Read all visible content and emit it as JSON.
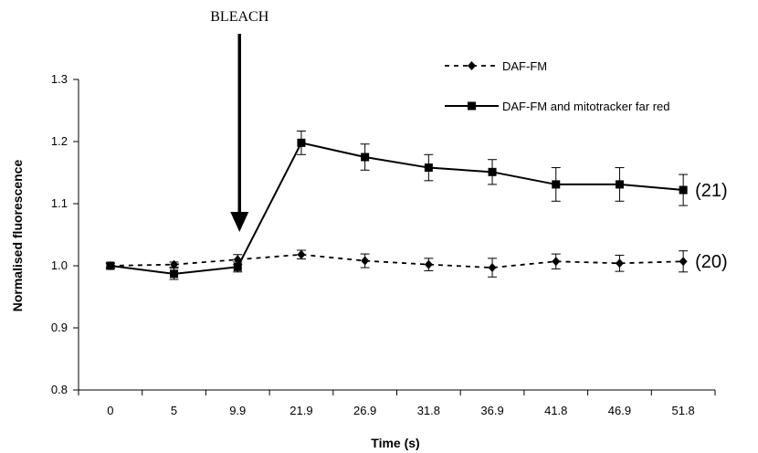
{
  "chart_data": {
    "type": "line",
    "categories": [
      "0",
      "5",
      "9.9",
      "21.9",
      "26.9",
      "31.8",
      "36.9",
      "41.8",
      "46.9",
      "51.8"
    ],
    "xlabel": "Time (s)",
    "ylabel": "Normalised fluorescence",
    "ylim": [
      0.8,
      1.3
    ],
    "yticks": [
      "0.8",
      "0.9",
      "1.0",
      "1.1",
      "1.2",
      "1.3"
    ],
    "grid": false,
    "legend_position": "top-right",
    "series": [
      {
        "name": "DAF-FM",
        "line_style": "dashed",
        "marker": "diamond",
        "values": [
          1.0,
          1.002,
          1.01,
          1.018,
          1.008,
          1.002,
          0.997,
          1.007,
          1.004,
          1.007
        ],
        "errors": [
          0.004,
          0.004,
          0.008,
          0.007,
          0.011,
          0.01,
          0.015,
          0.012,
          0.013,
          0.017
        ],
        "end_label": "(20)"
      },
      {
        "name": "DAF-FM and mitotracker far red",
        "line_style": "solid",
        "marker": "square",
        "values": [
          1.0,
          0.987,
          0.998,
          1.198,
          1.175,
          1.158,
          1.151,
          1.131,
          1.131,
          1.122
        ],
        "errors": [
          0.004,
          0.009,
          0.008,
          0.019,
          0.021,
          0.021,
          0.02,
          0.027,
          0.027,
          0.025
        ],
        "end_label": "(21)"
      }
    ],
    "annotations": [
      {
        "text": "BLEACH",
        "category": "9.9"
      }
    ]
  }
}
